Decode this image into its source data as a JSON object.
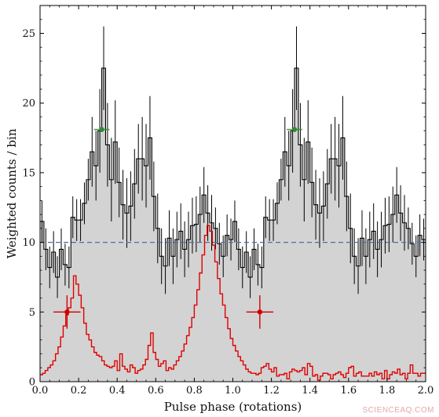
{
  "chart_data": {
    "type": "histogram-step",
    "xlabel": "Pulse phase (rotations)",
    "ylabel": "Weighted counts / bin",
    "xlim": [
      0.0,
      2.0
    ],
    "ylim": [
      0,
      27
    ],
    "x_ticks": [
      "0.0",
      "0.2",
      "0.4",
      "0.6",
      "0.8",
      "1.0",
      "1.2",
      "1.4",
      "1.6",
      "1.8",
      "2.0"
    ],
    "y_ticks": [
      "0",
      "5",
      "10",
      "15",
      "20",
      "25"
    ],
    "bin_width": 0.02,
    "grid": false,
    "series": [
      {
        "role": "counts-histogram",
        "style": "black step line, gray fill",
        "color": "#000000",
        "fill": "#d3d3d3",
        "values": [
          11.5,
          9.5,
          8.2,
          9.3,
          7.5,
          9.5,
          8.4,
          8.2,
          11.8,
          11.6,
          11.6,
          12.8,
          14.5,
          16.5,
          15.5,
          18.0,
          22.5,
          17.0,
          14.5,
          17.2,
          14.3,
          12.7,
          12.1,
          12.6,
          14.2,
          16.0,
          16.0,
          15.5,
          17.5,
          13.3,
          11.0,
          9.0,
          8.3,
          10.3,
          9.0,
          10.2,
          10.8,
          9.5,
          10.2,
          11.2,
          11.3,
          12.0,
          13.4,
          12.1,
          11.4,
          11.0,
          9.9,
          9.0,
          10.5,
          10.2
        ],
        "errors": [
          1.5,
          1.5,
          1.5,
          1.5,
          1.5,
          1.5,
          1.5,
          1.5,
          1.5,
          1.5,
          1.5,
          1.5,
          1.5,
          2.5,
          2.5,
          3.0,
          3.0,
          3.0,
          3.0,
          3.0,
          2.5,
          2.5,
          2.5,
          2.5,
          2.5,
          2.5,
          3.0,
          3.0,
          3.0,
          2.5,
          2.5,
          2.0,
          2.0,
          2.0,
          2.0,
          2.0,
          2.0,
          2.0,
          2.0,
          2.0,
          2.0,
          2.0,
          2.0,
          2.0,
          2.0,
          1.5,
          1.5,
          1.5,
          1.5,
          1.5
        ]
      },
      {
        "role": "reference-profile",
        "style": "red step line",
        "color": "#e00000",
        "values": [
          0.5,
          0.6,
          0.8,
          1.0,
          1.2,
          1.5,
          2.0,
          2.5,
          3.2,
          4.0,
          4.8,
          5.3,
          6.0,
          7.6,
          7.0,
          6.2,
          5.3,
          4.2,
          3.4,
          3.0,
          2.5,
          2.1,
          1.9,
          1.8,
          1.5,
          1.2,
          1.1,
          1.0,
          1.1,
          1.5,
          0.8,
          2.0,
          1.1,
          0.9,
          0.7,
          1.2,
          1.0,
          0.6,
          0.8,
          0.9,
          1.2,
          1.6,
          2.6,
          3.5,
          2.1,
          1.6,
          1.1,
          1.3,
          1.5,
          0.8,
          1.0,
          0.9,
          1.2,
          1.5,
          1.8,
          2.2,
          2.7,
          3.3,
          3.9,
          4.6,
          5.5,
          6.6,
          7.8,
          9.1,
          10.5,
          11.2,
          10.8,
          9.8,
          8.6,
          7.4,
          6.3,
          5.5,
          4.6,
          3.8,
          3.1,
          2.6,
          2.2,
          1.8,
          1.5,
          1.2,
          0.9,
          0.7,
          0.6,
          0.6,
          0.5,
          0.6,
          1.0,
          1.1,
          1.3,
          0.9,
          0.7,
          1.0,
          0.4,
          0.5,
          0.5,
          0.6,
          0.2,
          0.7,
          0.9,
          0.8,
          0.7,
          0.8,
          1.0,
          0.5,
          1.3,
          1.1,
          0.4,
          0.5,
          0.1,
          0.4,
          0.6,
          0.6,
          0.5,
          0.2,
          0.5,
          0.6,
          0.7,
          0.5,
          0.3,
          0.6,
          1.0,
          1.1,
          0.4,
          0.6,
          0.7,
          0.4,
          0.4,
          0.4,
          0.6,
          0.4,
          0.7,
          0.5,
          0.6,
          0.2,
          0.8,
          0.2,
          0.5,
          0.7,
          0.6,
          0.9,
          0.5,
          0.6,
          0.2,
          0.6,
          1.2,
          0.6,
          0.6,
          0.4,
          0.6,
          0.6
        ]
      },
      {
        "role": "mean-level",
        "style": "dashed horizontal line",
        "color": "#4a6fa5",
        "y": 10.0
      }
    ],
    "markers": [
      {
        "color": "#2e8b2e",
        "x": 0.32,
        "y": 18.1,
        "xerr": 0.04,
        "yerr": 0
      },
      {
        "color": "#2e8b2e",
        "x": 1.32,
        "y": 18.1,
        "xerr": 0.04,
        "yerr": 0
      },
      {
        "color": "#d00000",
        "x": 0.14,
        "y": 5.0,
        "xerr": 0.07,
        "yerr": 1.2
      },
      {
        "color": "#d00000",
        "x": 1.14,
        "y": 5.0,
        "xerr": 0.07,
        "yerr": 1.2
      }
    ]
  },
  "watermark": "SCIENCEAQ.COM"
}
